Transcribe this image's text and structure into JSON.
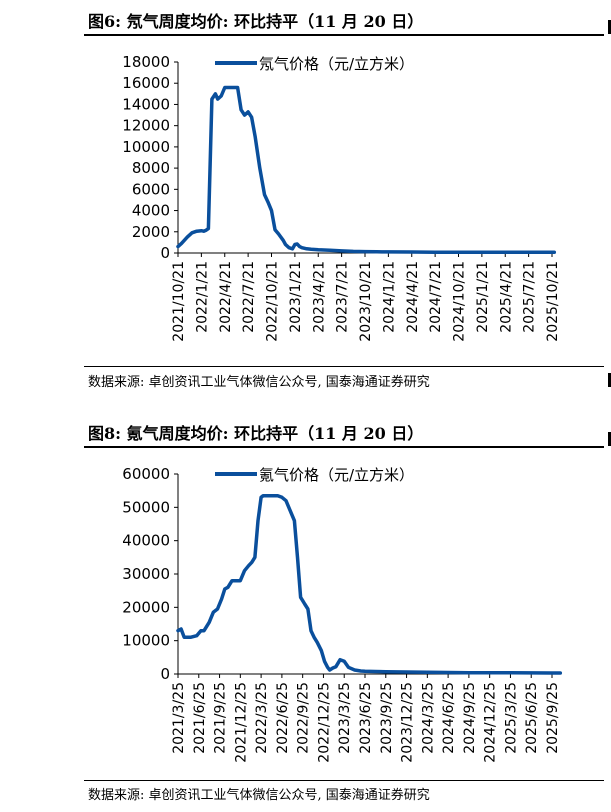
{
  "panels": [
    {
      "title": "图6:  氖气周度均价:  环比持平（11 月 20 日）",
      "source": "数据来源:  卓创资讯工业气体微信公众号,  国泰海通证券研究"
    },
    {
      "title": "图8:  氪气周度均价:  环比持平（11 月 20 日）",
      "source": "数据来源:  卓创资讯工业气体微信公众号,  国泰海通证券研究"
    }
  ],
  "chart_data": [
    {
      "type": "line",
      "title": "",
      "xlabel": "",
      "ylabel": "",
      "ylim": [
        0,
        18000
      ],
      "yticks": [
        0,
        2000,
        4000,
        6000,
        8000,
        10000,
        12000,
        14000,
        16000,
        18000
      ],
      "xticks": [
        "2021/10/21",
        "2022/1/21",
        "2022/4/21",
        "2022/7/21",
        "2022/10/21",
        "2023/1/21",
        "2023/4/21",
        "2023/7/21",
        "2023/10/21",
        "2024/1/21",
        "2024/4/21",
        "2024/7/21",
        "2024/10/21",
        "2025/1/21",
        "2025/4/21",
        "2025/7/21",
        "2025/10/21"
      ],
      "legend": "top-center",
      "series": [
        {
          "name": "氖气价格（元/立方米）",
          "color": "#0a4f9c",
          "x": [
            0,
            0.15,
            0.4,
            0.6,
            0.8,
            1.0,
            1.1,
            1.2,
            1.3,
            1.45,
            1.6,
            1.7,
            1.85,
            2.0,
            2.2,
            2.4,
            2.55,
            2.7,
            2.85,
            3.0,
            3.15,
            3.3,
            3.5,
            3.7,
            3.85,
            4.0,
            4.15,
            4.3,
            4.5,
            4.6,
            4.75,
            4.9,
            5.0,
            5.1,
            5.2,
            5.3,
            5.5,
            5.7,
            6.0,
            6.5,
            7.0,
            7.5,
            8.0,
            8.5,
            9.0,
            10.0,
            11.0,
            12.0,
            13.0,
            14.0,
            15.0,
            16.0,
            16.1
          ],
          "values": [
            600,
            900,
            1500,
            1900,
            2050,
            2100,
            2050,
            2150,
            2300,
            14500,
            15000,
            14500,
            14800,
            15600,
            15600,
            15600,
            15600,
            13500,
            13000,
            13300,
            12800,
            11000,
            8000,
            5500,
            4800,
            4000,
            2200,
            1800,
            1200,
            800,
            500,
            400,
            800,
            850,
            600,
            500,
            400,
            350,
            300,
            250,
            200,
            150,
            130,
            110,
            100,
            90,
            80,
            80,
            80,
            80,
            80,
            80,
            80
          ]
        }
      ]
    },
    {
      "type": "line",
      "title": "",
      "xlabel": "",
      "ylabel": "",
      "ylim": [
        0,
        60000
      ],
      "yticks": [
        0,
        10000,
        20000,
        30000,
        40000,
        50000,
        60000
      ],
      "xticks": [
        "2021/3/25",
        "2021/6/25",
        "2021/9/25",
        "2021/12/25",
        "2022/3/25",
        "2022/6/25",
        "2022/9/25",
        "2022/12/25",
        "2023/3/25",
        "2023/6/25",
        "2023/9/25",
        "2023/12/25",
        "2024/3/25",
        "2024/6/25",
        "2024/9/25",
        "2024/12/25",
        "2025/3/25",
        "2025/6/25",
        "2025/9/25"
      ],
      "legend": "top-center",
      "series": [
        {
          "name": "氪气价格（元/立方米）",
          "color": "#0a4f9c",
          "x": [
            0,
            0.15,
            0.3,
            0.6,
            0.9,
            1.1,
            1.25,
            1.5,
            1.7,
            1.9,
            2.1,
            2.25,
            2.4,
            2.6,
            2.8,
            3.0,
            3.2,
            3.4,
            3.55,
            3.7,
            3.85,
            4.0,
            4.1,
            4.2,
            4.4,
            4.6,
            4.8,
            5.0,
            5.2,
            5.4,
            5.6,
            5.75,
            5.9,
            6.0,
            6.1,
            6.25,
            6.4,
            6.55,
            6.7,
            6.9,
            7.05,
            7.2,
            7.3,
            7.45,
            7.6,
            7.8,
            8.0,
            8.2,
            8.5,
            8.8,
            9.0,
            9.5,
            10.0,
            11.0,
            12.0,
            13.0,
            14.0,
            15.0,
            16.0,
            17.0,
            18.0,
            18.4
          ],
          "values": [
            13000,
            13500,
            11000,
            11000,
            11500,
            13000,
            13000,
            15500,
            18500,
            19500,
            22500,
            25500,
            26000,
            28000,
            28000,
            28000,
            31000,
            32500,
            33500,
            35000,
            46000,
            53000,
            53500,
            53500,
            53500,
            53500,
            53500,
            53000,
            52000,
            49000,
            46000,
            35000,
            23000,
            22000,
            21000,
            19500,
            13000,
            11000,
            9500,
            7000,
            3800,
            2000,
            1200,
            1800,
            2200,
            4300,
            3800,
            2000,
            1200,
            900,
            800,
            750,
            700,
            600,
            500,
            450,
            400,
            380,
            350,
            330,
            300,
            300
          ]
        }
      ]
    }
  ]
}
